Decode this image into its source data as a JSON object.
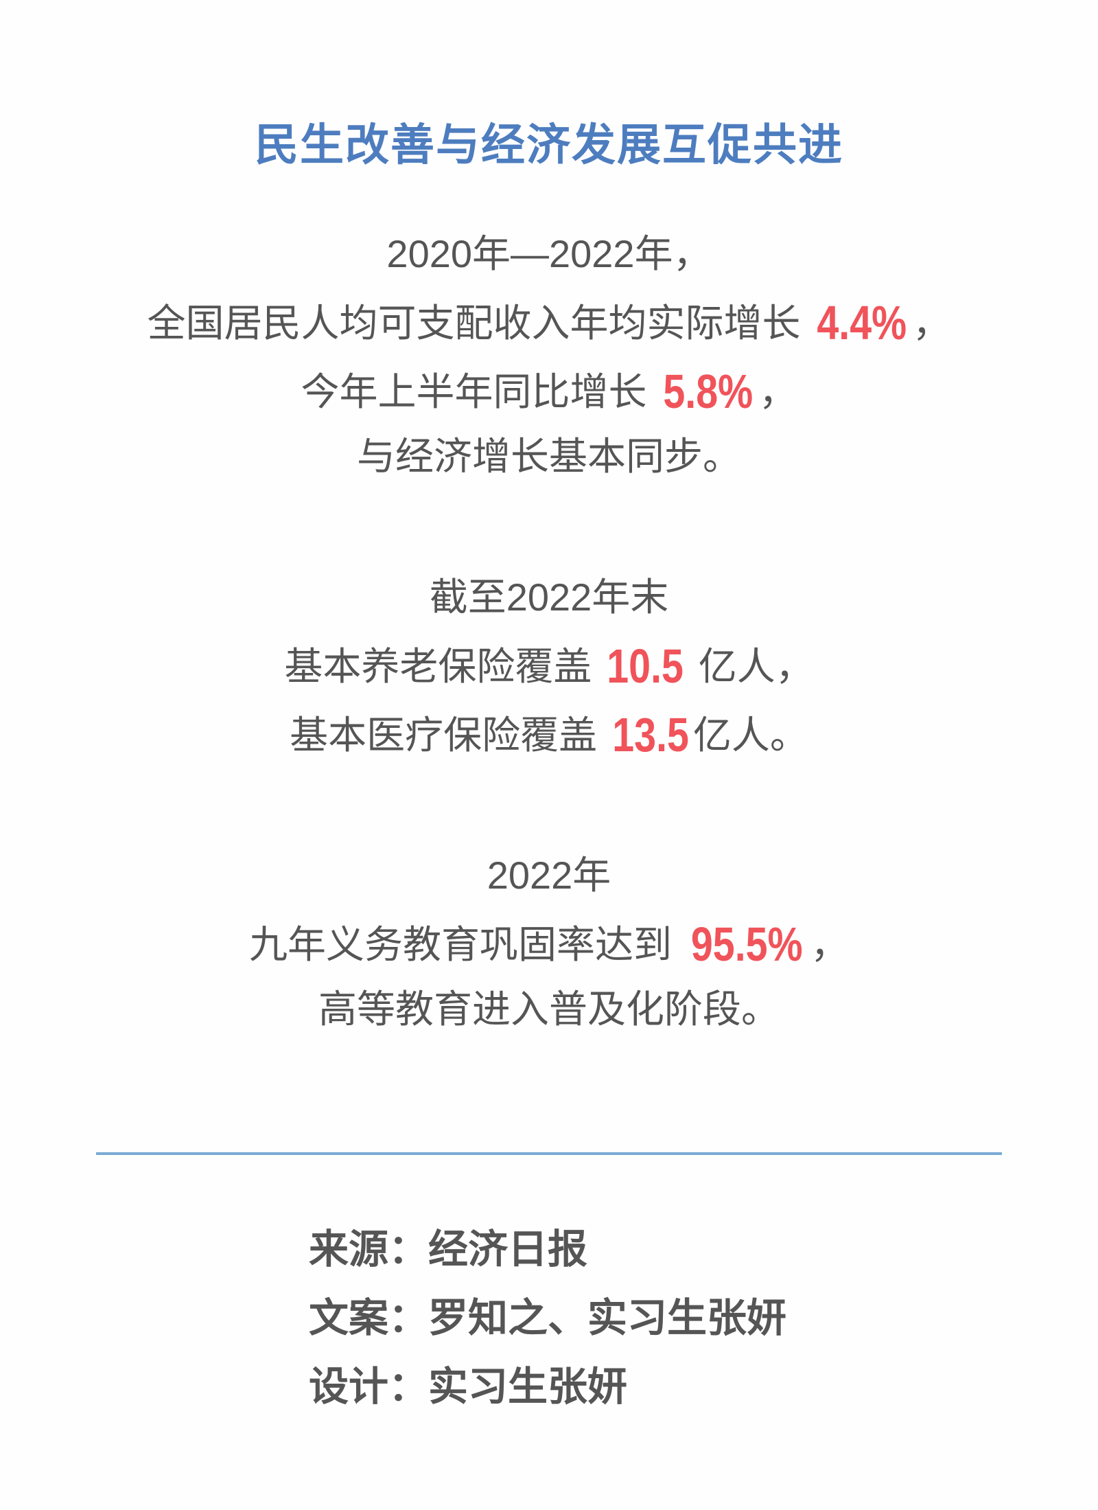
{
  "title": "民生改善与经济发展互促共进",
  "section1": {
    "line1": "2020年—2022年，",
    "line2_prefix": "全国居民人均可支配收入年均实际增长",
    "line2_value": "4.4%",
    "line2_suffix": "，",
    "line3_prefix": "今年上半年同比增长",
    "line3_value": "5.8%",
    "line3_suffix": "，",
    "line4": "与经济增长基本同步。"
  },
  "section2": {
    "line1": "截至2022年末",
    "line2_prefix": "基本养老保险覆盖",
    "line2_value": "10.5",
    "line2_suffix": "亿人，",
    "line3_prefix": "基本医疗保险覆盖",
    "line3_value": "13.5",
    "line3_suffix": "亿人。"
  },
  "section3": {
    "line1": "2022年",
    "line2_prefix": "九年义务教育巩固率达到",
    "line2_value": "95.5%",
    "line2_suffix": "，",
    "line3": "高等教育进入普及化阶段。"
  },
  "credits": {
    "source": "来源：经济日报",
    "copy": "文案：罗知之、实习生张妍",
    "design": "设计：实习生张妍"
  },
  "colors": {
    "title": "#4d7dbf",
    "highlight": "#f0535a",
    "text": "#555555",
    "divider": "#7aaad6"
  }
}
